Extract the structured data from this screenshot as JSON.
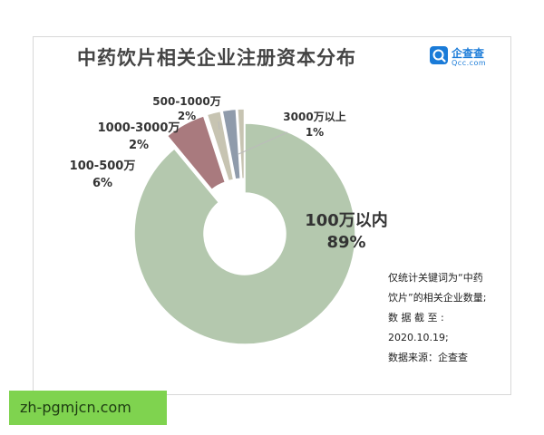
{
  "chart_data": {
    "type": "pie",
    "title": "中药饮片相关企业注册资本分布",
    "categories": [
      "100万以内",
      "100-500万",
      "1000-3000万",
      "500-1000万",
      "3000万以上"
    ],
    "values": [
      89,
      6,
      2,
      2,
      1
    ],
    "label_values": [
      "89%",
      "6%",
      "2%",
      "2%",
      "1%"
    ],
    "colors": [
      "#b4c8ae",
      "#a97a7e",
      "#c7c4b2",
      "#8f9bab",
      "#c7c4b2"
    ],
    "donut": true
  },
  "brand": {
    "name": "企查查",
    "sub": "Qcc.com",
    "color": "#1a7bd8"
  },
  "note": {
    "line1": "仅统计关键词为“中药",
    "line2": "饮片”的相关企业数量;",
    "line3": "数 据 截 至 :",
    "line4": "2020.10.19;",
    "line5": "数据来源：企查查"
  },
  "banner": {
    "text": "zh-pgmjcn.com",
    "color": "#7fd34f"
  }
}
